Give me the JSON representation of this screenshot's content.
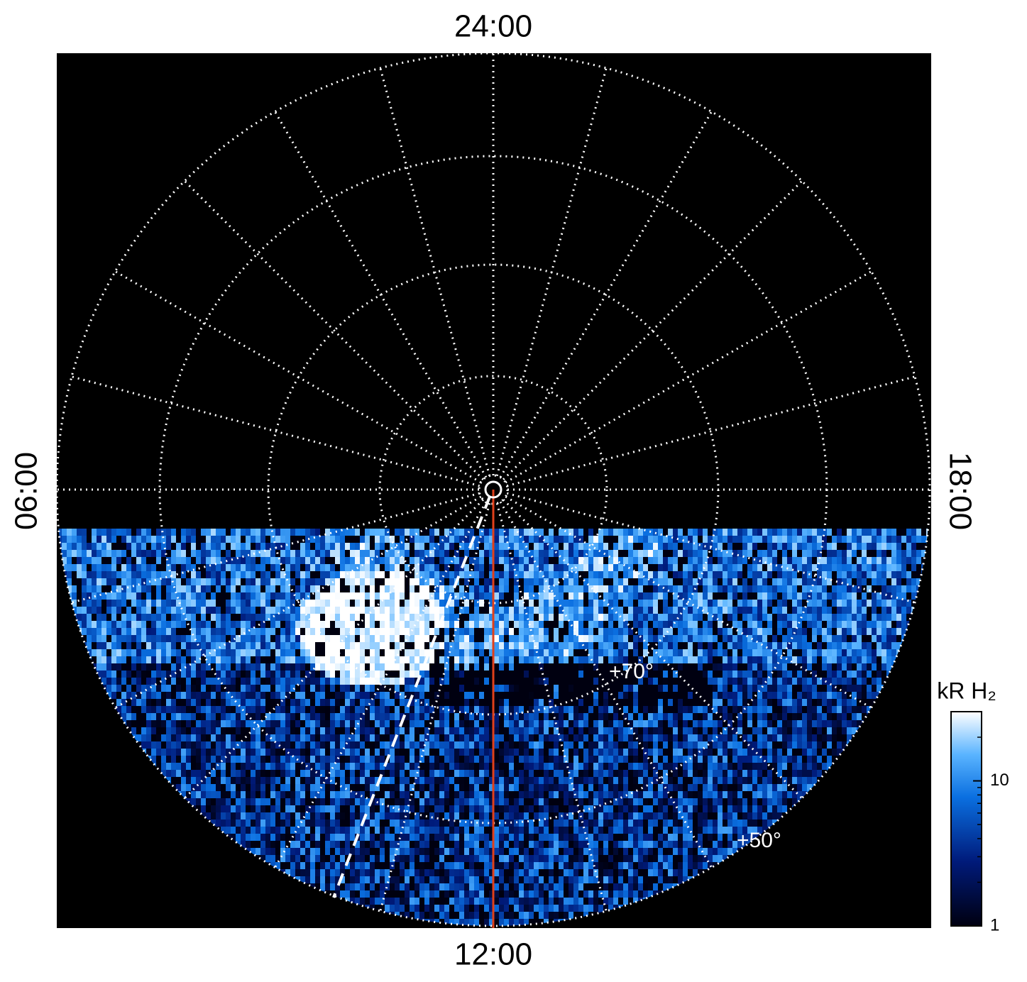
{
  "image": {
    "labels": {
      "top": "24:00",
      "left": "06:00",
      "right": "18:00",
      "bottom": "12:00"
    },
    "latitude_labels": [
      "+70°",
      "+50°"
    ]
  },
  "colorbar": {
    "title": "kR H₂",
    "scale": "log",
    "lim": [
      1,
      30
    ],
    "ticks": [
      1,
      10
    ]
  }
}
